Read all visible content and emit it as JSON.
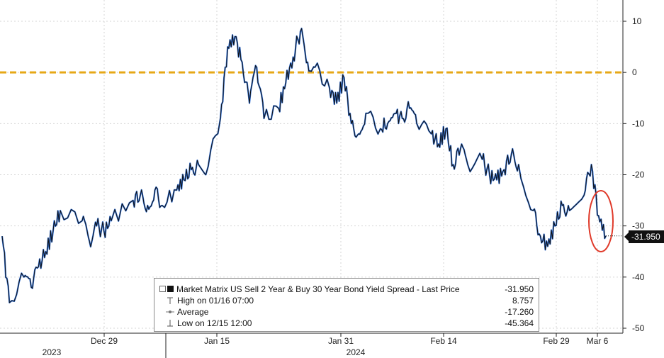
{
  "chart_data": {
    "type": "line",
    "title": "",
    "xlabel": "",
    "ylabel": "",
    "ylim": [
      -50,
      12
    ],
    "y_ticks": [
      10,
      0,
      -10,
      -20,
      -30,
      -40,
      -50
    ],
    "x_tick_labels": [
      "Dec 29",
      "Jan 15",
      "Jan 31",
      "Feb 14",
      "Feb 29",
      "Mar 6"
    ],
    "x_year_labels": [
      "2023",
      "2024"
    ],
    "grid": true,
    "legend_position": "bottom-center",
    "reference_line": {
      "value": 0,
      "color": "#e6a817",
      "style": "dashed"
    },
    "colors": {
      "price_line": "#111111",
      "price_highlight": "#2f6fd6",
      "circle": "#e03a2a"
    },
    "series": [
      {
        "name": "Market Matrix US Sell 2 Year & Buy 30 Year Bond Yield Spread - Last Price",
        "x": [
          "2023-12-15",
          "2023-12-16",
          "2023-12-18",
          "2023-12-19",
          "2023-12-20",
          "2023-12-21",
          "2023-12-22",
          "2023-12-23",
          "2023-12-26",
          "2023-12-27",
          "2023-12-28",
          "2023-12-29",
          "2023-12-30",
          "2024-01-02",
          "2024-01-03",
          "2024-01-04",
          "2024-01-05",
          "2024-01-06",
          "2024-01-08",
          "2024-01-09",
          "2024-01-10",
          "2024-01-11",
          "2024-01-12",
          "2024-01-14",
          "2024-01-15",
          "2024-01-16",
          "2024-01-17",
          "2024-01-18",
          "2024-01-19",
          "2024-01-20",
          "2024-01-22",
          "2024-01-23",
          "2024-01-24",
          "2024-01-25",
          "2024-01-26",
          "2024-01-27",
          "2024-01-29",
          "2024-01-30",
          "2024-01-31",
          "2024-02-01",
          "2024-02-02",
          "2024-02-03",
          "2024-02-05",
          "2024-02-06",
          "2024-02-07",
          "2024-02-08",
          "2024-02-09",
          "2024-02-10",
          "2024-02-12",
          "2024-02-13",
          "2024-02-14",
          "2024-02-15",
          "2024-02-16",
          "2024-02-17",
          "2024-02-19",
          "2024-02-20",
          "2024-02-21",
          "2024-02-22",
          "2024-02-23",
          "2024-02-24",
          "2024-02-26",
          "2024-02-27",
          "2024-02-28",
          "2024-02-29",
          "2024-03-01",
          "2024-03-02",
          "2024-03-04",
          "2024-03-05",
          "2024-03-06",
          "2024-03-07"
        ],
        "values": [
          -32,
          -45,
          -40,
          -42,
          -38,
          -35,
          -31,
          -27,
          -29,
          -33,
          -30,
          -31,
          -29,
          -25,
          -24,
          -26,
          -23,
          -26,
          -23,
          -21,
          -19,
          -18,
          -20,
          -9,
          5,
          7,
          2,
          -6,
          1,
          -9,
          -7,
          -2,
          3,
          8,
          2,
          1,
          -3,
          -6,
          -1,
          -10,
          -12,
          -8,
          -11,
          -10,
          -8,
          -9,
          -7,
          -10,
          -12,
          -14,
          -11,
          -18,
          -15,
          -18,
          -17,
          -20,
          -21,
          -19,
          -16,
          -18,
          -27,
          -32,
          -34,
          -30,
          -26,
          -27,
          -24,
          -18,
          -28,
          -31.95
        ]
      }
    ],
    "legend": {
      "title": "Market Matrix US Sell 2 Year & Buy 30 Year Bond Yield Spread - Last Price",
      "title_value": "-31.950",
      "high_label": "High on 01/16 07:00",
      "high_value": "8.757",
      "average_label": "Average",
      "average_value": "-17.260",
      "low_label": "Low on 12/15 12:00",
      "low_value": "-45.364"
    },
    "last_price_tag": "-31.950"
  }
}
